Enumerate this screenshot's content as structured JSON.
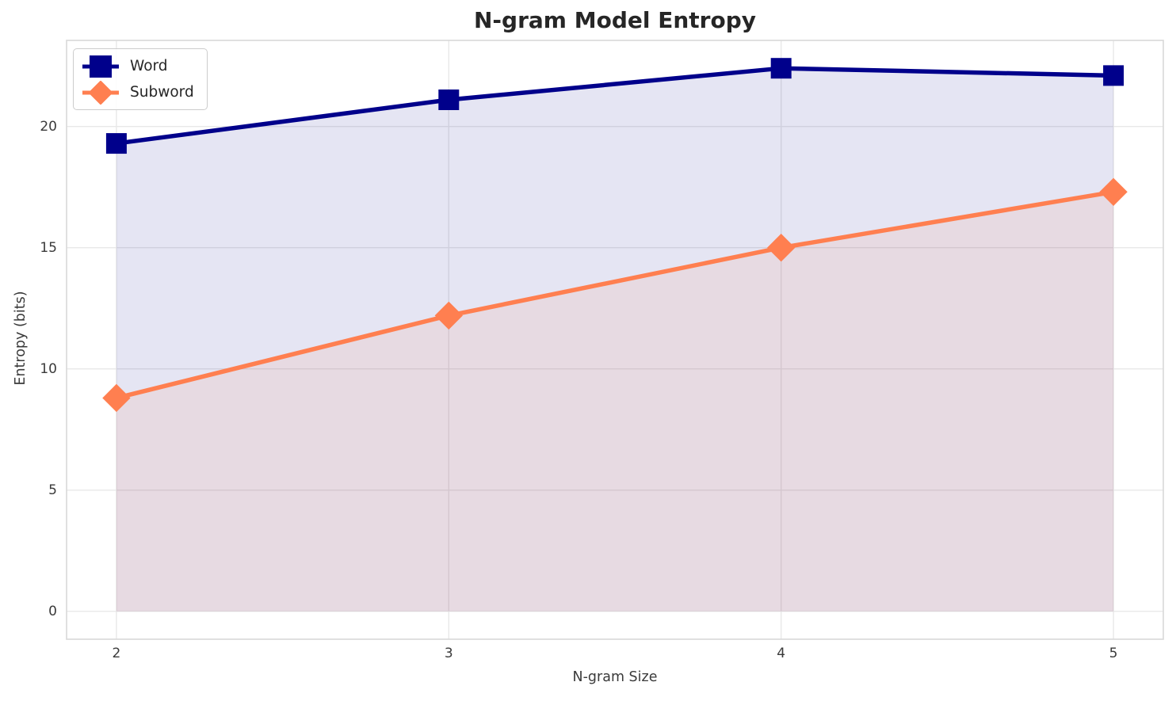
{
  "chart_data": {
    "type": "line",
    "title": "N-gram Model Entropy",
    "xlabel": "N-gram Size",
    "ylabel": "Entropy (bits)",
    "x": [
      2,
      3,
      4,
      5
    ],
    "series": [
      {
        "name": "Word",
        "values": [
          19.3,
          21.1,
          22.4,
          22.1
        ],
        "color": "#00008B",
        "marker": "square",
        "fill_to_zero": true,
        "fill_opacity": 0.1
      },
      {
        "name": "Subword",
        "values": [
          8.8,
          12.2,
          15.0,
          17.3
        ],
        "color": "#FF7F50",
        "marker": "diamond",
        "fill_to_zero": true,
        "fill_opacity": 0.1
      }
    ],
    "xticks": [
      2,
      3,
      4,
      5
    ],
    "yticks": [
      0,
      5,
      10,
      15,
      20
    ],
    "xlim": [
      1.85,
      5.15
    ],
    "ylim": [
      -1.15,
      23.55
    ],
    "grid": true,
    "legend_position": "upper left"
  },
  "colors": {
    "grid": "#e8e8e8",
    "plot_border": "#d9d9d9",
    "tick_text": "#3a3a3a",
    "title_text": "#262626",
    "background": "#ffffff"
  }
}
